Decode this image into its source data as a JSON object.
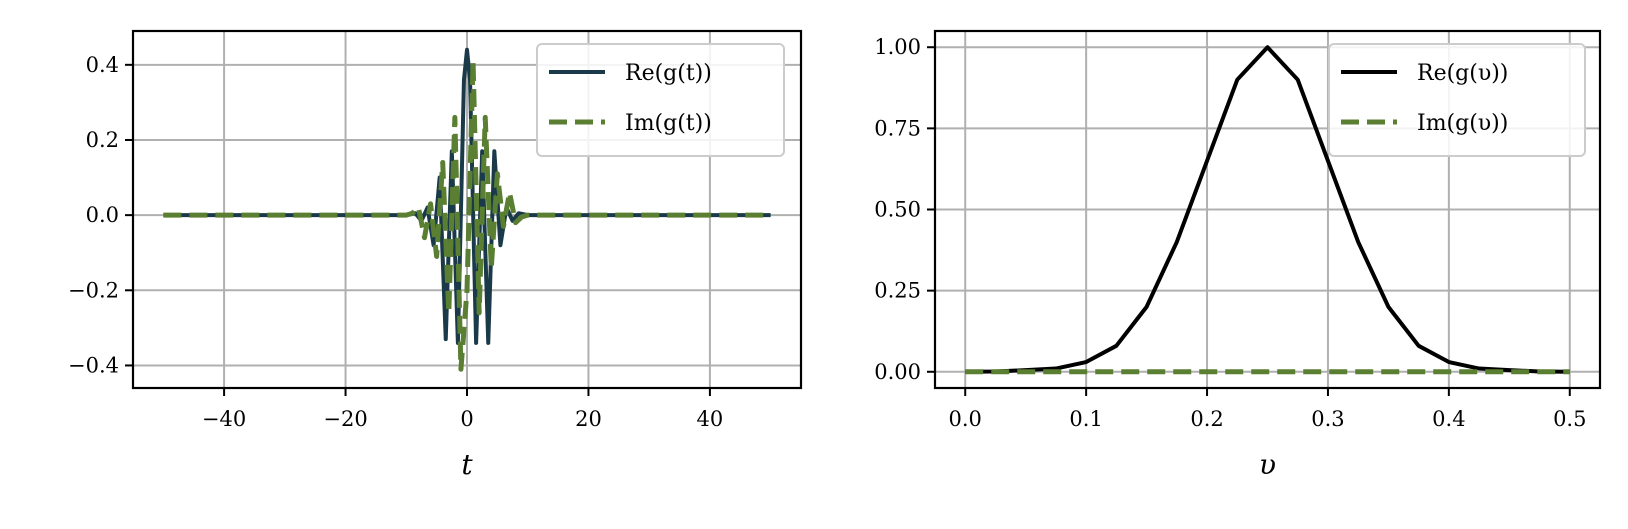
{
  "chart_data": [
    {
      "type": "line",
      "xlabel": "t",
      "ylabel": "",
      "xlim": [
        -55,
        55
      ],
      "ylim": [
        -0.46,
        0.49
      ],
      "xticks": [
        -40,
        -20,
        0,
        20,
        40
      ],
      "xtick_labels": [
        "−40",
        "−20",
        "0",
        "20",
        "40"
      ],
      "yticks": [
        -0.4,
        -0.2,
        0.0,
        0.2,
        0.4
      ],
      "ytick_labels": [
        "−0.4",
        "−0.2",
        "0.0",
        "0.2",
        "0.4"
      ],
      "grid": true,
      "legend_position": "top-right",
      "series": [
        {
          "name": "Re(g(t))",
          "color": "#1a3a4a",
          "dash": "solid",
          "x": [
            -50,
            -10,
            -8.5,
            -7.5,
            -6.5,
            -5.5,
            -4.5,
            -3.5,
            -2.5,
            -1.5,
            -0.5,
            0,
            0.5,
            1.5,
            2.5,
            3.5,
            4.5,
            5.5,
            6.5,
            7.5,
            8.5,
            10,
            50
          ],
          "y": [
            0.0,
            0.0,
            0.005,
            -0.015,
            0.02,
            -0.08,
            0.1,
            -0.33,
            0.17,
            -0.34,
            0.36,
            0.44,
            0.36,
            -0.34,
            0.17,
            -0.34,
            0.17,
            -0.08,
            0.02,
            -0.015,
            0.005,
            0.0,
            0.0
          ]
        },
        {
          "name": "Im(g(t))",
          "color": "#5a7f32",
          "dash": "dashed",
          "x": [
            -50,
            -10,
            -9,
            -8,
            -7,
            -6,
            -5,
            -4,
            -3,
            -2,
            -1,
            0,
            1,
            2,
            3,
            4,
            5,
            6,
            7,
            8,
            9,
            10,
            50
          ],
          "y": [
            0.0,
            0.0,
            0.005,
            0.02,
            -0.06,
            0.03,
            -0.11,
            0.14,
            -0.26,
            0.26,
            -0.41,
            -0.2,
            0.41,
            -0.26,
            0.26,
            -0.14,
            0.11,
            -0.03,
            0.06,
            -0.02,
            -0.005,
            0.0,
            0.0
          ]
        }
      ]
    },
    {
      "type": "line",
      "xlabel": "υ",
      "ylabel": "",
      "xlim": [
        -0.025,
        0.525
      ],
      "ylim": [
        -0.05,
        1.05
      ],
      "xticks": [
        0.0,
        0.1,
        0.2,
        0.3,
        0.4,
        0.5
      ],
      "xtick_labels": [
        "0.0",
        "0.1",
        "0.2",
        "0.3",
        "0.4",
        "0.5"
      ],
      "yticks": [
        0.0,
        0.25,
        0.5,
        0.75,
        1.0
      ],
      "ytick_labels": [
        "0.00",
        "0.25",
        "0.50",
        "0.75",
        "1.00"
      ],
      "grid": true,
      "legend_position": "top-right",
      "series": [
        {
          "name": "Re(g(υ))",
          "color": "#000000",
          "dash": "solid",
          "x": [
            0.0,
            0.025,
            0.05,
            0.075,
            0.1,
            0.125,
            0.15,
            0.175,
            0.2,
            0.225,
            0.25,
            0.275,
            0.3,
            0.325,
            0.35,
            0.375,
            0.4,
            0.425,
            0.45,
            0.475,
            0.5
          ],
          "y": [
            0.0,
            0.001,
            0.005,
            0.01,
            0.03,
            0.08,
            0.2,
            0.4,
            0.65,
            0.9,
            1.0,
            0.9,
            0.65,
            0.4,
            0.2,
            0.08,
            0.03,
            0.01,
            0.005,
            0.001,
            0.0
          ]
        },
        {
          "name": "Im(g(υ))",
          "color": "#5a7f32",
          "dash": "dashed",
          "x": [
            0.0,
            0.5
          ],
          "y": [
            0.0,
            0.0
          ]
        }
      ]
    }
  ]
}
